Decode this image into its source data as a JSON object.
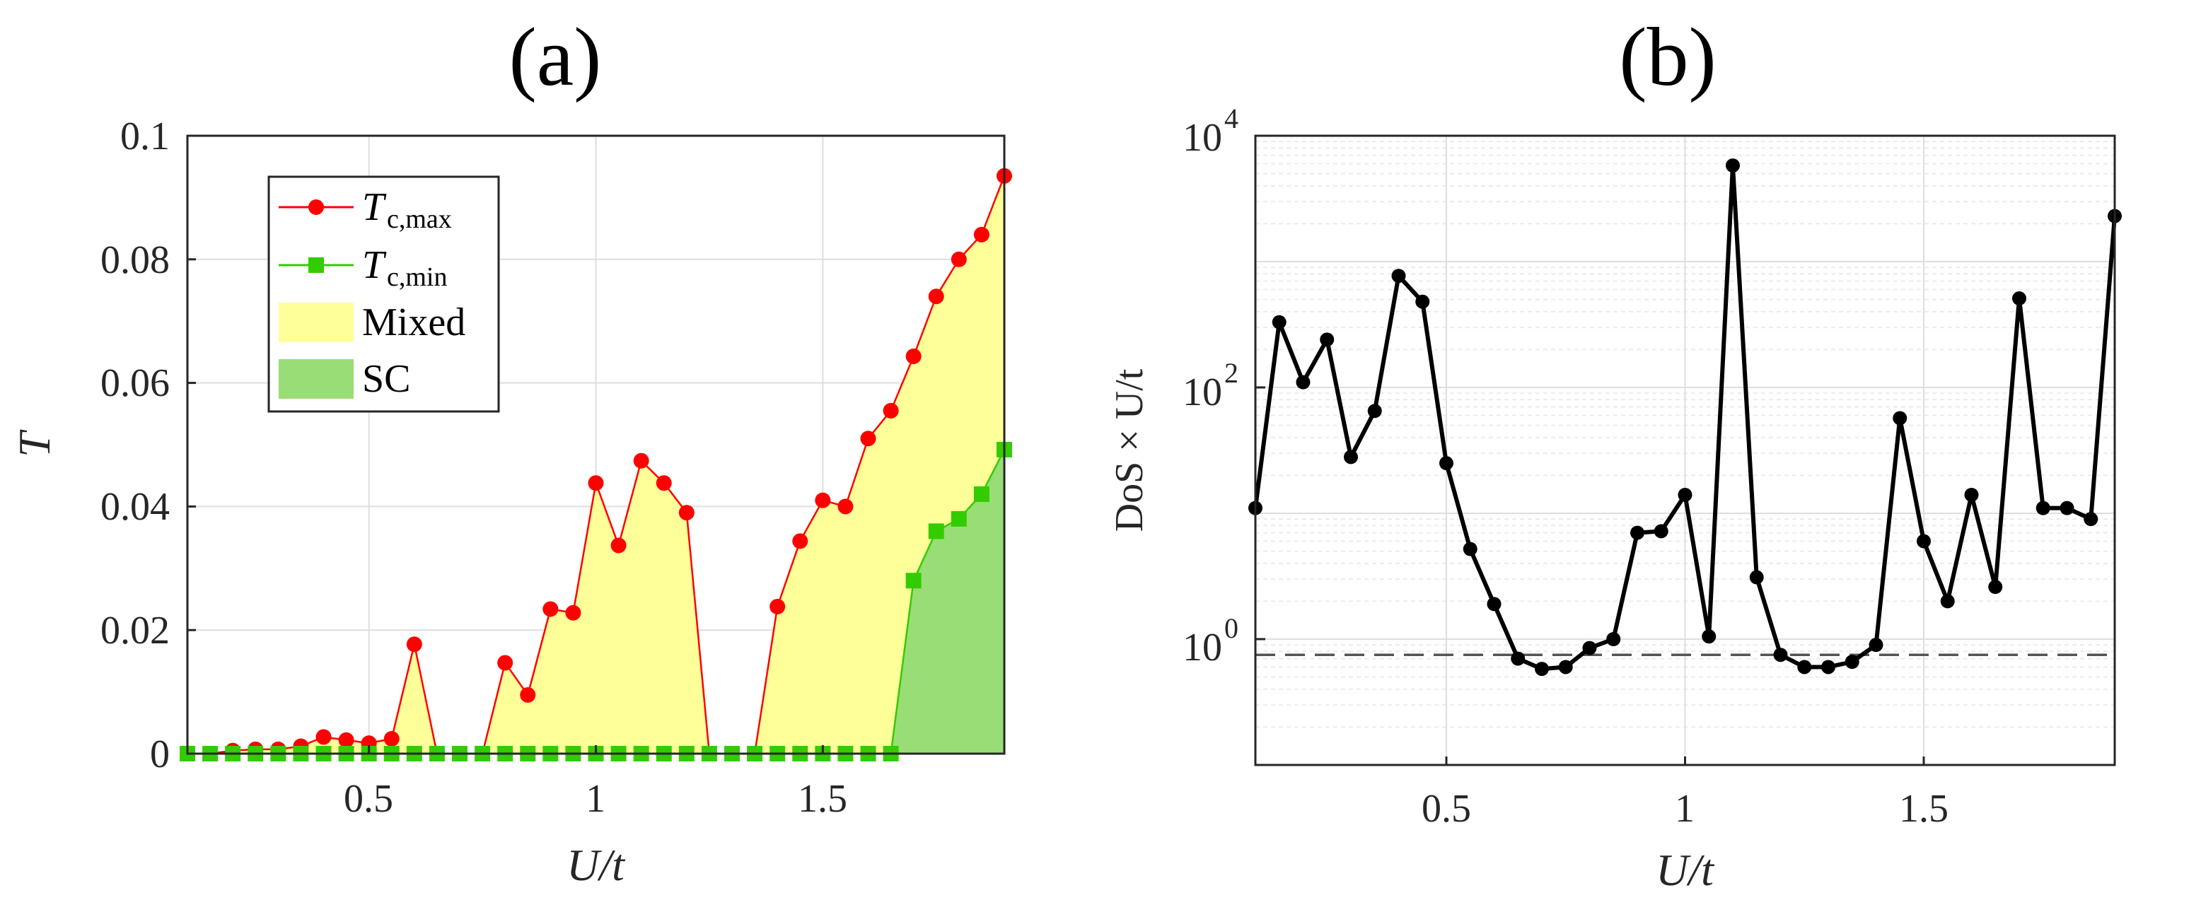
{
  "panel_a": {
    "title": "(a)",
    "xlabel": "U/t",
    "ylabel": "T",
    "x_ticks": [
      "0.5",
      "1",
      "1.5"
    ],
    "y_ticks": [
      "0",
      "0.02",
      "0.04",
      "0.06",
      "0.08",
      "0.1"
    ],
    "legend": {
      "tcmax": {
        "base": "T",
        "sub": "c,max"
      },
      "tcmin": {
        "base": "T",
        "sub": "c,min"
      },
      "mixed": "Mixed",
      "sc": "SC"
    }
  },
  "panel_b": {
    "title": "(b)",
    "xlabel": "U/t",
    "ylabel": "DoS × U/t",
    "x_ticks": [
      "0.5",
      "1",
      "1.5"
    ],
    "y_ticks": [
      {
        "base": "10",
        "exp": "0"
      },
      {
        "base": "10",
        "exp": "2"
      },
      {
        "base": "10",
        "exp": "4"
      }
    ]
  },
  "colors": {
    "tcmax": "#ff0000",
    "tcmin": "#33cc00",
    "mixed_fill": "#ffff99",
    "sc_fill": "#99dd77",
    "dos_line": "#000000",
    "grid": "#dedede"
  },
  "chart_data": [
    {
      "type": "line",
      "panel": "a",
      "x": [
        0.1,
        0.15,
        0.2,
        0.25,
        0.3,
        0.35,
        0.4,
        0.45,
        0.5,
        0.55,
        0.6,
        0.65,
        0.7,
        0.75,
        0.8,
        0.85,
        0.9,
        0.95,
        1.0,
        1.05,
        1.1,
        1.15,
        1.2,
        1.25,
        1.3,
        1.35,
        1.4,
        1.45,
        1.5,
        1.55,
        1.6,
        1.65,
        1.7,
        1.75,
        1.8,
        1.85,
        1.9
      ],
      "series": [
        {
          "name": "T_{c,max}",
          "values": [
            0,
            0,
            0.0005,
            0.0007,
            0.0007,
            0.0012,
            0.0027,
            0.0022,
            0.0017,
            0.0024,
            0.0177,
            0,
            0,
            0,
            0.0147,
            0.0095,
            0.0234,
            0.0228,
            0.0438,
            0.0337,
            0.0474,
            0.0438,
            0.039,
            0,
            0,
            0,
            0.0238,
            0.0344,
            0.041,
            0.04,
            0.051,
            0.0555,
            0.0643,
            0.074,
            0.08,
            0.084,
            0.0935
          ]
        },
        {
          "name": "T_{c,min}",
          "values": [
            0,
            0,
            0,
            0,
            0,
            0,
            0,
            0,
            0,
            0,
            0,
            0,
            0,
            0,
            0,
            0,
            0,
            0,
            0,
            0,
            0,
            0,
            0,
            0,
            0,
            0,
            0,
            0,
            0,
            0,
            0,
            0,
            0.028,
            0.036,
            0.038,
            0.042,
            0.0492
          ]
        }
      ],
      "areas": [
        "Mixed",
        "SC"
      ],
      "xlim": [
        0.1,
        1.9
      ],
      "ylim": [
        0,
        0.1
      ],
      "grid": true,
      "legend_position": "top-left"
    },
    {
      "type": "line",
      "panel": "b",
      "y_scale": "log",
      "x": [
        0.1,
        0.15,
        0.2,
        0.25,
        0.3,
        0.35,
        0.4,
        0.45,
        0.5,
        0.55,
        0.6,
        0.65,
        0.7,
        0.75,
        0.8,
        0.85,
        0.9,
        0.95,
        1.0,
        1.05,
        1.1,
        1.15,
        1.2,
        1.25,
        1.3,
        1.35,
        1.4,
        1.45,
        1.5,
        1.55,
        1.6,
        1.65,
        1.7,
        1.75,
        1.8,
        1.85,
        1.9
      ],
      "series": [
        {
          "values": [
            11,
            330,
            110,
            240,
            28,
            65,
            770,
            480,
            25,
            5.2,
            1.9,
            0.7,
            0.58,
            0.6,
            0.85,
            1.0,
            7,
            7.2,
            14,
            1.05,
            5800,
            3.1,
            0.75,
            0.6,
            0.6,
            0.66,
            0.9,
            57,
            6,
            2,
            14,
            2.6,
            510,
            11,
            11,
            9,
            2300
          ]
        }
      ],
      "reference_line": 0.75,
      "xlim": [
        0.1,
        1.9
      ],
      "ylim": [
        0.1,
        10000
      ],
      "grid": true
    }
  ]
}
